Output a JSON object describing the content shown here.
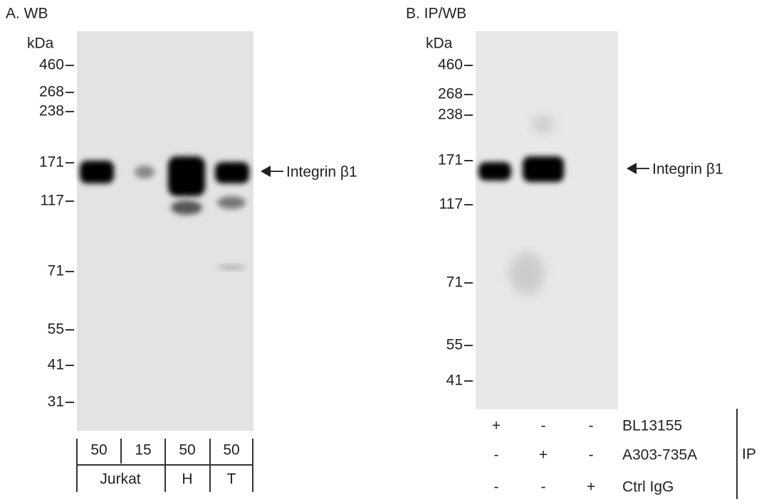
{
  "panels": [
    {
      "title": "A. WB",
      "unit": "kDa",
      "markers": [
        "460",
        "268",
        "238",
        "171",
        "117",
        "71",
        "55",
        "41",
        "31"
      ],
      "target": "Integrin β1",
      "loads": [
        "50",
        "15",
        "50",
        "50"
      ],
      "groups": [
        "Jurkat",
        "H",
        "T"
      ]
    },
    {
      "title": "B. IP/WB",
      "unit": "kDa",
      "markers": [
        "460",
        "268",
        "238",
        "171",
        "117",
        "71",
        "55",
        "41"
      ],
      "target": "Integrin β1",
      "rows": [
        {
          "label": "BL13155",
          "signs": [
            "+",
            "-",
            "-"
          ]
        },
        {
          "label": "A303-735A",
          "signs": [
            "-",
            "+",
            "-"
          ]
        },
        {
          "label": "Ctrl IgG",
          "signs": [
            "-",
            "-",
            "+"
          ]
        }
      ],
      "ip": "IP"
    }
  ]
}
